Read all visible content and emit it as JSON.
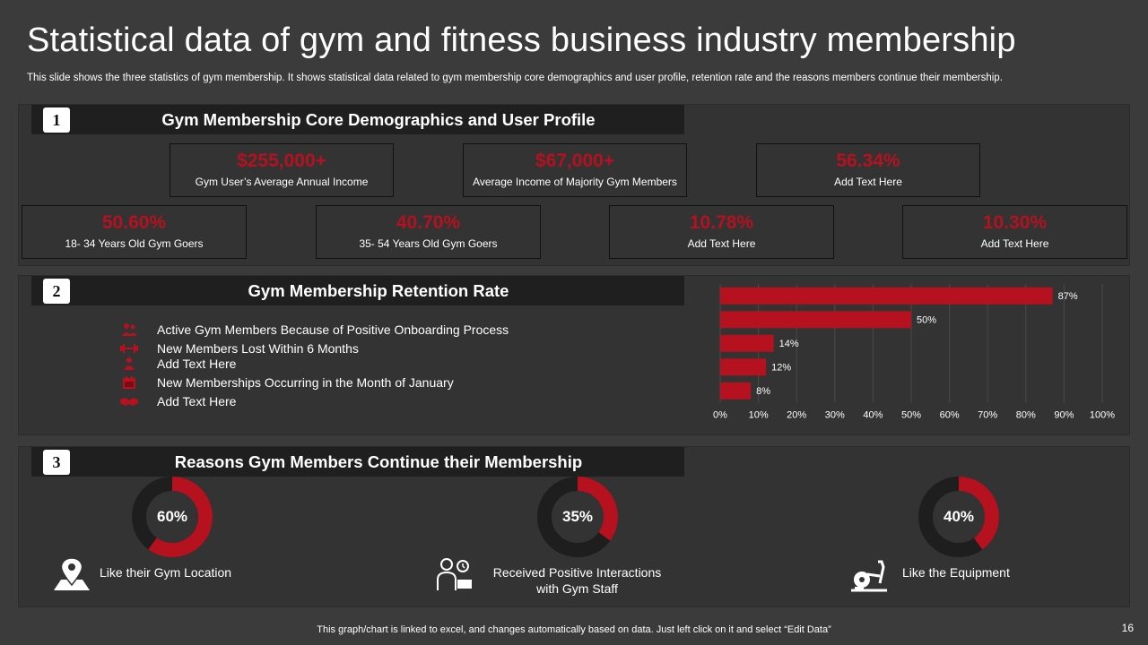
{
  "title": "Statistical data of gym and fitness business industry membership",
  "subtitle": "This slide shows the three statistics of gym membership. It shows statistical data related to gym membership core demographics and user profile, retention rate and the reasons members continue their membership.",
  "colors": {
    "accent": "#b5111f",
    "background": "#3b3b3b",
    "panel": "#333333",
    "header": "#1f1f1f",
    "ring_base": "#1e1e1e"
  },
  "section1": {
    "number": "1",
    "title": "Gym Membership Core Demographics and User Profile",
    "stats": [
      {
        "value": "$255,000+",
        "label": "Gym User’s Average Annual Income"
      },
      {
        "value": "$67,000+",
        "label": "Average Income of Majority Gym Members"
      },
      {
        "value": "56.34%",
        "label": "Add Text Here"
      },
      {
        "value": "50.60%",
        "label": "18- 34 Years Old Gym Goers"
      },
      {
        "value": "40.70%",
        "label": "35- 54 Years Old Gym Goers"
      },
      {
        "value": "10.78%",
        "label": "Add Text Here"
      },
      {
        "value": "10.30%",
        "label": "Add Text Here"
      }
    ]
  },
  "section2": {
    "number": "2",
    "title": "Gym Membership Retention Rate",
    "items": [
      {
        "label": "Active Gym Members Because of Positive Onboarding Process",
        "icon": "group-icon"
      },
      {
        "label": "New Members Lost Within 6 Months",
        "icon": "dumbbell-icon"
      },
      {
        "label": "Add Text Here",
        "icon": "person-icon"
      },
      {
        "label": "New Memberships Occurring in the Month of January",
        "icon": "calendar-icon"
      },
      {
        "label": "Add Text Here",
        "icon": "handshake-icon"
      }
    ]
  },
  "section3": {
    "number": "3",
    "title": "Reasons Gym Members Continue their Membership",
    "reasons": [
      {
        "value": "60%",
        "label_lines": [
          "Like their Gym Location"
        ],
        "icon": "location-map-icon"
      },
      {
        "value": "35%",
        "label_lines": [
          "Received Positive Interactions",
          "with Gym Staff"
        ],
        "icon": "gym-staff-icon"
      },
      {
        "value": "40%",
        "label_lines": [
          "Like the Equipment"
        ],
        "icon": "exercise-bike-icon"
      }
    ]
  },
  "chart_data": [
    {
      "type": "bar",
      "orientation": "horizontal",
      "categories": [
        "Active Gym Members Because of Positive Onboarding Process",
        "New Members Lost Within 6 Months",
        "Add Text Here",
        "New Memberships Occurring in the Month of January",
        "Add Text Here"
      ],
      "values": [
        87,
        50,
        14,
        12,
        8
      ],
      "data_labels": [
        "87%",
        "50%",
        "14%",
        "12%",
        "8%"
      ],
      "xlim": [
        0,
        100
      ],
      "xticks": [
        "0%",
        "10%",
        "20%",
        "30%",
        "40%",
        "50%",
        "60%",
        "70%",
        "80%",
        "90%",
        "100%"
      ],
      "grid": true,
      "color": "#b5111f"
    },
    {
      "type": "pie",
      "style": "donut",
      "values": [
        60,
        35,
        40
      ],
      "labels": [
        "60%",
        "35%",
        "40%"
      ],
      "color": "#b5111f",
      "base_color": "#1e1e1e"
    }
  ],
  "footer": {
    "note": "This graph/chart is linked to excel, and changes automatically based on data. Just left click on it and select “Edit Data”",
    "page_number": "16"
  }
}
